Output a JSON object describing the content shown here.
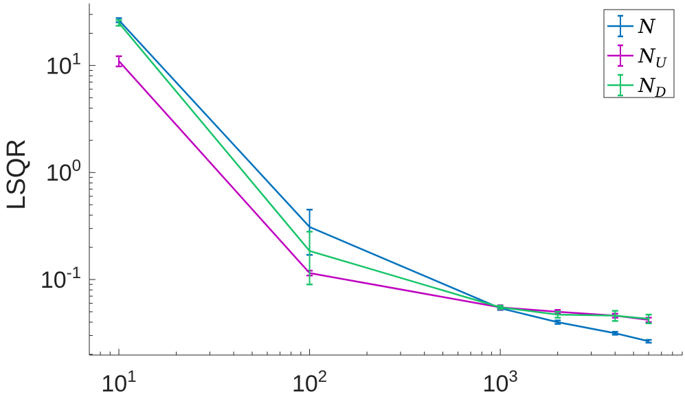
{
  "chart_data": {
    "type": "line",
    "xscale": "log",
    "yscale": "log",
    "xlabel": "",
    "ylabel": "LSQR",
    "xlim": [
      7,
      9000
    ],
    "ylim": [
      0.0197,
      38
    ],
    "xticks": [
      {
        "value": 10,
        "base": "10",
        "exp": "1"
      },
      {
        "value": 100,
        "base": "10",
        "exp": "2"
      },
      {
        "value": 1000,
        "base": "10",
        "exp": "3"
      }
    ],
    "yticks": [
      {
        "value": 0.1,
        "base": "10",
        "exp": "-1"
      },
      {
        "value": 1,
        "base": "10",
        "exp": "0"
      },
      {
        "value": 10,
        "base": "10",
        "exp": "1"
      }
    ],
    "grid": false,
    "legend_position": "top-right",
    "series": [
      {
        "name": "N",
        "name_sub": "",
        "color": "#0072BD",
        "x": [
          10,
          100,
          1000,
          2000,
          4000,
          6000
        ],
        "y": [
          26.5,
          0.31,
          0.054,
          0.04,
          0.0315,
          0.0265
        ],
        "err": [
          1.2,
          0.14,
          0.002,
          0.0015,
          0.001,
          0.0008
        ]
      },
      {
        "name": "N",
        "name_sub": "U",
        "color": "#BF00BF",
        "x": [
          10,
          100,
          1000,
          2000,
          4000,
          6000
        ],
        "y": [
          11.0,
          0.115,
          0.055,
          0.05,
          0.046,
          0.042
        ],
        "err": [
          1.2,
          0.006,
          0.0025,
          0.002,
          0.002,
          0.002
        ]
      },
      {
        "name": "N",
        "name_sub": "D",
        "color": "#19C46A",
        "x": [
          10,
          100,
          1000,
          2000,
          4000,
          6000
        ],
        "y": [
          25.0,
          0.185,
          0.055,
          0.047,
          0.046,
          0.043
        ],
        "err": [
          1.5,
          0.095,
          0.002,
          0.003,
          0.005,
          0.004
        ]
      }
    ]
  }
}
